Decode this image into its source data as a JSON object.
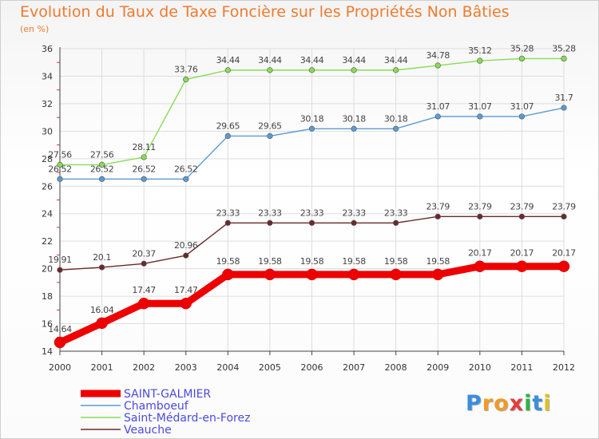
{
  "chart_data": {
    "type": "line",
    "title": "Evolution du Taux de Taxe Foncière sur les Propriétés Non Bâties",
    "unit_label": "(en %)",
    "xlabel": "",
    "ylabel": "",
    "x": [
      "2000",
      "2001",
      "2002",
      "2003",
      "2004",
      "2005",
      "2006",
      "2007",
      "2008",
      "2009",
      "2010",
      "2011",
      "2012"
    ],
    "ylim": [
      14,
      36
    ],
    "yticks": [
      14,
      16,
      18,
      20,
      22,
      24,
      26,
      28,
      30,
      32,
      34,
      36
    ],
    "grid": true,
    "legend_position": "bottom-left",
    "series": [
      {
        "name": "SAINT-GALMIER",
        "color": "#ee0000",
        "emphasis": true,
        "values": [
          14.64,
          16.04,
          17.47,
          17.47,
          19.58,
          19.58,
          19.58,
          19.58,
          19.58,
          19.58,
          20.17,
          20.17,
          20.17
        ]
      },
      {
        "name": "Chamboeuf",
        "color": "#5b9bd5",
        "emphasis": false,
        "values": [
          26.52,
          26.52,
          26.52,
          26.52,
          29.65,
          29.65,
          30.18,
          30.18,
          30.18,
          31.07,
          31.07,
          31.07,
          31.7
        ]
      },
      {
        "name": "Saint-Médard-en-Forez",
        "color": "#88dd55",
        "emphasis": false,
        "values": [
          27.56,
          27.56,
          28.11,
          33.76,
          34.44,
          34.44,
          34.44,
          34.44,
          34.44,
          34.78,
          35.12,
          35.28,
          35.28
        ]
      },
      {
        "name": "Veauche",
        "color": "#6b2a2a",
        "emphasis": false,
        "values": [
          19.91,
          20.1,
          20.37,
          20.96,
          23.33,
          23.33,
          23.33,
          23.33,
          23.33,
          23.79,
          23.79,
          23.79,
          23.79
        ]
      }
    ],
    "legend_text_color": "#4a4ae0"
  },
  "brand": {
    "letters": [
      "P",
      "r",
      "o",
      "x",
      "i",
      "t",
      "i"
    ],
    "colors": [
      "#3a8ede",
      "#f29b25",
      "#f29b25",
      "#e63b3b",
      "#2db24a",
      "#3a8ede",
      "#e0c020"
    ]
  }
}
